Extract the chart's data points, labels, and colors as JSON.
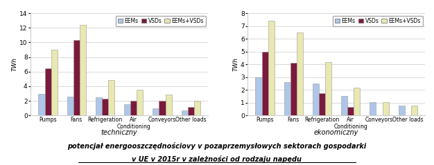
{
  "categories_line1": [
    "Pumps",
    "Fans",
    "Refrigeration",
    "Air",
    "Conveyors",
    "Other loads"
  ],
  "categories_line2": [
    "",
    "",
    "",
    "Conditioning",
    "",
    ""
  ],
  "chart1": {
    "EEMs": [
      3.0,
      2.6,
      2.5,
      1.5,
      1.0,
      0.7
    ],
    "VSDs": [
      6.5,
      10.3,
      2.3,
      2.0,
      2.0,
      1.2
    ],
    "EEMs_VSDs": [
      9.0,
      12.4,
      4.8,
      3.5,
      2.9,
      2.0
    ],
    "ylim": [
      0,
      14.0
    ],
    "yticks": [
      0.0,
      2.0,
      4.0,
      6.0,
      8.0,
      10.0,
      12.0,
      14.0
    ],
    "ylabel": "TWh"
  },
  "chart2": {
    "EEMs": [
      3.0,
      2.6,
      2.5,
      1.55,
      1.05,
      0.75
    ],
    "VSDs": [
      5.0,
      4.1,
      1.75,
      0.65,
      0.0,
      0.0
    ],
    "EEMs_VSDs": [
      7.4,
      6.5,
      4.2,
      2.15,
      1.05,
      0.75
    ],
    "ylim": [
      0,
      8.0
    ],
    "yticks": [
      0.0,
      1.0,
      2.0,
      3.0,
      4.0,
      5.0,
      6.0,
      7.0,
      8.0
    ],
    "ylabel": "TWh"
  },
  "colors": {
    "EEMs": "#aec6e8",
    "VSDs": "#7b1a3c",
    "EEMs_VSDs": "#e8e8b0"
  },
  "legend_labels": [
    "EEMs",
    "VSDs",
    "EEMs+VSDs"
  ],
  "subtitle1": "techniczny",
  "subtitle2": "ekonomiczny",
  "caption_line1": "potencjał energooszczędnościovy v pozaprzemysłowych sektorach gospodarki",
  "caption_line2": "v UE v 2015r v zależności od rodzaju napędu",
  "bar_width": 0.22,
  "fig_bg": "#f0f0f0"
}
